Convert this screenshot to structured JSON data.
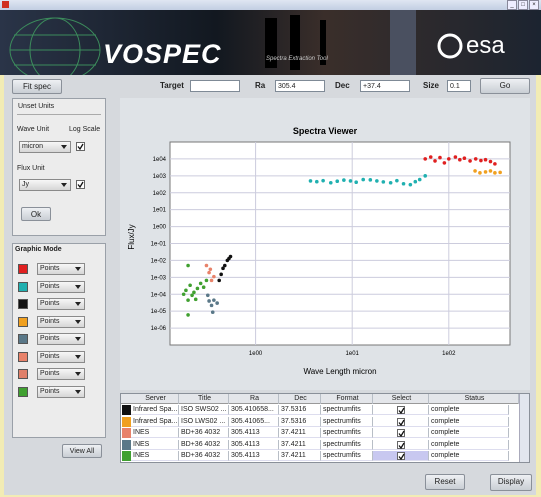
{
  "window": {
    "controls": [
      "_",
      "□",
      "×"
    ]
  },
  "banner": {
    "logo": "VOSPEC",
    "subtitle": "Spectra Extraction Tool",
    "agency": "esa"
  },
  "toolbar": {
    "fit_button": "Fit spec",
    "target_label": "Target",
    "ra_label": "Ra",
    "ra_value": "305.4",
    "dec_label": "Dec",
    "dec_value": "+37.4",
    "size_label": "Size",
    "size_value": "0.1",
    "go_button": "Go"
  },
  "units_panel": {
    "title": "Unset Units",
    "wave_label": "Wave Unit",
    "log_label": "Log Scale",
    "wave_unit": "micron",
    "wave_log": true,
    "flux_label": "Flux Unit",
    "flux_unit": "Jy",
    "flux_log": true,
    "ok_button": "Ok"
  },
  "graphic_mode": {
    "title": "Graphic Mode",
    "view_all_button": "View All",
    "items": [
      {
        "color": "#e02020",
        "mode": "Points"
      },
      {
        "color": "#20b0b0",
        "mode": "Points"
      },
      {
        "color": "#111111",
        "mode": "Points"
      },
      {
        "color": "#f0a020",
        "mode": "Points"
      },
      {
        "color": "#5a7888",
        "mode": "Points"
      },
      {
        "color": "#e8826a",
        "mode": "Points"
      },
      {
        "color": "#e0806a",
        "mode": "Points"
      },
      {
        "color": "#40a030",
        "mode": "Points"
      }
    ]
  },
  "viewer": {
    "type": "scatter",
    "title": "Spectra Viewer",
    "x_label": "Wave Length micron",
    "y_label": "Flux/Jy",
    "log_x": true,
    "log_y": true,
    "grid": true,
    "xlim": [
      0.13,
      430
    ],
    "ylim": [
      1e-07,
      100000
    ],
    "xticks": [
      {
        "value": 1,
        "label": "1e00"
      },
      {
        "value": 10,
        "label": "1e01"
      },
      {
        "value": 100,
        "label": "1e02"
      }
    ],
    "yticks": [
      {
        "value": 10000,
        "label": "1e04"
      },
      {
        "value": 1000,
        "label": "1e03"
      },
      {
        "value": 100,
        "label": "1e02"
      },
      {
        "value": 10,
        "label": "1e01"
      },
      {
        "value": 1,
        "label": "1e00"
      },
      {
        "value": 0.1,
        "label": "1e-01"
      },
      {
        "value": 0.01,
        "label": "1e-02"
      },
      {
        "value": 0.001,
        "label": "1e-03"
      },
      {
        "value": 0.0001,
        "label": "1e-04"
      },
      {
        "value": 1e-05,
        "label": "1e-05"
      },
      {
        "value": 1e-06,
        "label": "1e-06"
      }
    ],
    "series": [
      {
        "color": "#e02020",
        "x": [
          57,
          65,
          72,
          81,
          90,
          100,
          117,
          130,
          145,
          166,
          190,
          215,
          240,
          270,
          300
        ],
        "y": [
          10000,
          13000,
          7600,
          12000,
          5800,
          10000,
          13000,
          9000,
          11000,
          7600,
          10000,
          8000,
          9000,
          7000,
          5100
        ]
      },
      {
        "color": "#20b0b0",
        "x": [
          3.7,
          4.3,
          5,
          6,
          7,
          8.2,
          9.6,
          11,
          13,
          15.4,
          18,
          21,
          25,
          29,
          34,
          40,
          45,
          50,
          57
        ],
        "y": [
          500,
          450,
          520,
          390,
          480,
          560,
          500,
          420,
          600,
          580,
          500,
          440,
          390,
          520,
          340,
          300,
          450,
          600,
          1000
        ]
      },
      {
        "color": "#111111",
        "x": [
          0.42,
          0.44,
          0.46,
          0.48,
          0.51,
          0.53,
          0.55
        ],
        "y": [
          0.00066,
          0.0015,
          0.0034,
          0.005,
          0.01,
          0.013,
          0.017
        ]
      },
      {
        "color": "#f0a020",
        "x": [
          187,
          210,
          240,
          270,
          300,
          340
        ],
        "y": [
          1950,
          1500,
          1700,
          1950,
          1500,
          1600
        ]
      },
      {
        "color": "#5a7888",
        "x": [
          0.32,
          0.33,
          0.35,
          0.36,
          0.37,
          0.4
        ],
        "y": [
          8.7e-05,
          4e-05,
          2.2e-05,
          8.7e-06,
          4.5e-05,
          3e-05
        ]
      },
      {
        "color": "#e8826a",
        "x": [
          0.31,
          0.33,
          0.35,
          0.37,
          0.34
        ],
        "y": [
          0.005,
          0.0019,
          0.00066,
          0.0011,
          0.003
        ]
      },
      {
        "color": "#40a030",
        "x": [
          0.19,
          0.2,
          0.21,
          0.22,
          0.23,
          0.25,
          0.27,
          0.29,
          0.31,
          0.2,
          0.2,
          0.18,
          0.24
        ],
        "y": [
          0.00017,
          4.5e-05,
          0.00034,
          8.7e-05,
          0.00013,
          0.00022,
          0.00044,
          0.00026,
          0.00066,
          0.005,
          6e-06,
          0.0001,
          5e-05
        ]
      }
    ]
  },
  "table": {
    "columns": [
      "Server",
      "Title",
      "Ra",
      "Dec",
      "Format",
      "Select",
      "Status"
    ],
    "rows": [
      {
        "color": "#111111",
        "cells": [
          "Infrared Spa...",
          "ISO SWS02 ...",
          "305.410658...",
          "37.5316",
          "spectrumfits"
        ],
        "select": true,
        "status": "complete",
        "active": false
      },
      {
        "color": "#f0a020",
        "cells": [
          "Infrared Spa...",
          "ISO LWS02 ...",
          "305.41065...",
          "37.5316",
          "spectrumfits"
        ],
        "select": true,
        "status": "complete",
        "active": false
      },
      {
        "color": "#e8826a",
        "cells": [
          "INES",
          "BD+36 4032",
          "305.4113",
          "37.4211",
          "spectrumfits"
        ],
        "select": true,
        "status": "complete",
        "active": false
      },
      {
        "color": "#5a7888",
        "cells": [
          "INES",
          "BD+36 4032",
          "305.4113",
          "37.4211",
          "spectrumfits"
        ],
        "select": true,
        "status": "complete",
        "active": false
      },
      {
        "color": "#40a030",
        "cells": [
          "INES",
          "BD+36 4032",
          "305.4113",
          "37.4211",
          "spectrumfits"
        ],
        "select": true,
        "status": "complete",
        "active": true
      }
    ]
  },
  "buttons": {
    "reset": "Reset",
    "display": "Display"
  }
}
